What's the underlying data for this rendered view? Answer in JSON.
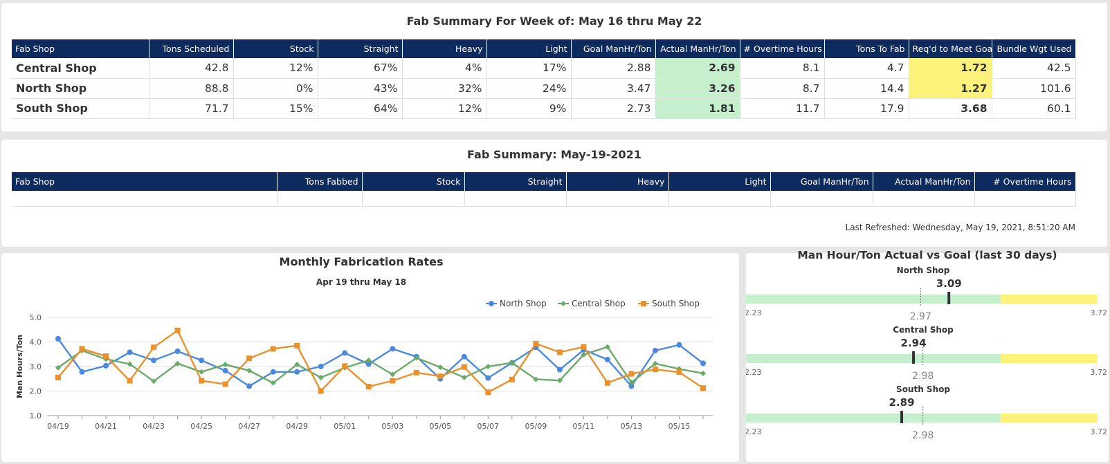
{
  "week_summary": {
    "title": "Fab Summary For Week of: May 16 thru May 22",
    "columns": [
      "Fab Shop",
      "Tons Scheduled",
      "Stock",
      "Straight",
      "Heavy",
      "Light",
      "Goal ManHr/Ton",
      "Actual ManHr/Ton",
      "# Overtime Hours",
      "Tons To Fab",
      "Req'd to Meet Goal",
      "Bundle Wgt Used"
    ],
    "rows": [
      [
        "Central Shop",
        "42.8",
        "12%",
        "67%",
        "4%",
        "17%",
        "2.88",
        "2.69",
        "8.1",
        "4.7",
        "1.72",
        "42.5"
      ],
      [
        "North Shop",
        "88.8",
        "0%",
        "43%",
        "32%",
        "24%",
        "3.47",
        "3.26",
        "8.7",
        "14.4",
        "1.27",
        "101.6"
      ],
      [
        "South Shop",
        "71.7",
        "15%",
        "64%",
        "12%",
        "9%",
        "2.73",
        "1.81",
        "11.7",
        "17.9",
        "3.68",
        "60.1"
      ]
    ],
    "highlight_colors": {
      "green": "#c6efce",
      "yellow": "#fdf27a"
    }
  },
  "day_summary": {
    "title": "Fab Summary: May-19-2021",
    "columns": [
      "Fab Shop",
      "Tons Fabbed",
      "Stock",
      "Straight",
      "Heavy",
      "Light",
      "Goal ManHr/Ton",
      "Actual ManHr/Ton",
      "# Overtime Hours"
    ],
    "last_refreshed": "Last Refreshed: Wednesday, May 19, 2021, 8:51:20 AM"
  },
  "colors": {
    "header_bg": "#0d2b5e",
    "north": "#4a89dc",
    "central": "#6aab6a",
    "south": "#e8912d",
    "gauge_green": "#c6efce",
    "gauge_yellow": "#fdf27a"
  },
  "chart_data": {
    "type": "line",
    "title": "Monthly Fabrication Rates",
    "subtitle": "Apr 19 thru May 18",
    "ylabel": "Man Hours/Ton",
    "xlabel": "",
    "ylim": [
      1.0,
      5.0
    ],
    "yticks": [
      "1.0",
      "2.0",
      "3.0",
      "4.0",
      "5.0"
    ],
    "grid": true,
    "legend_position": "top-right",
    "x": [
      "04/19",
      "04/20",
      "04/21",
      "04/22",
      "04/23",
      "04/24",
      "04/25",
      "04/26",
      "04/27",
      "04/28",
      "04/29",
      "04/30",
      "05/01",
      "05/02",
      "05/03",
      "05/04",
      "05/05",
      "05/06",
      "05/07",
      "05/08",
      "05/09",
      "05/10",
      "05/11",
      "05/12",
      "05/13",
      "05/14",
      "05/15",
      "05/16"
    ],
    "xtick_labels": [
      "04/19",
      "04/21",
      "04/23",
      "04/25",
      "04/27",
      "04/29",
      "05/01",
      "05/03",
      "05/05",
      "05/07",
      "05/09",
      "05/11",
      "05/13",
      "05/15"
    ],
    "series": [
      {
        "name": "North Shop",
        "marker": "circle",
        "values": [
          4.13,
          2.78,
          3.03,
          3.58,
          3.25,
          3.62,
          3.25,
          2.83,
          2.2,
          2.78,
          2.78,
          3.0,
          3.55,
          3.1,
          3.72,
          3.4,
          2.5,
          3.4,
          2.53,
          3.15,
          3.78,
          2.87,
          3.68,
          3.28,
          2.2,
          3.65,
          3.88,
          3.13
        ]
      },
      {
        "name": "Central Shop",
        "marker": "diamond",
        "values": [
          2.95,
          3.65,
          3.3,
          3.1,
          2.4,
          3.12,
          2.78,
          3.08,
          2.83,
          2.33,
          3.08,
          2.55,
          2.95,
          3.25,
          2.68,
          3.35,
          2.97,
          2.55,
          3.0,
          3.15,
          2.48,
          2.43,
          3.48,
          3.8,
          2.35,
          3.12,
          2.9,
          2.72
        ]
      },
      {
        "name": "South Shop",
        "marker": "square",
        "values": [
          2.55,
          3.72,
          3.42,
          2.42,
          3.78,
          4.47,
          2.42,
          2.28,
          3.33,
          3.72,
          3.85,
          2.0,
          3.02,
          2.18,
          2.42,
          2.75,
          2.6,
          2.98,
          1.95,
          2.47,
          3.93,
          3.58,
          3.8,
          2.33,
          2.7,
          2.88,
          2.77,
          2.12
        ]
      }
    ]
  },
  "gauge_panel": {
    "title": "Man Hour/Ton Actual vs Goal (last 30 days)",
    "gauges": [
      {
        "name": "North Shop",
        "actual": 3.09,
        "actual_label": "3.09",
        "goal": 2.97,
        "goal_label": "2.97",
        "min": 2.23,
        "max": 3.72,
        "min_label": "2.23",
        "max_label": "3.72",
        "yellow_from": 3.31
      },
      {
        "name": "Central Shop",
        "actual": 2.94,
        "actual_label": "2.94",
        "goal": 2.98,
        "goal_label": "2.98",
        "min": 2.23,
        "max": 3.72,
        "min_label": "2.23",
        "max_label": "3.72",
        "yellow_from": 3.31
      },
      {
        "name": "South Shop",
        "actual": 2.89,
        "actual_label": "2.89",
        "goal": 2.98,
        "goal_label": "2.98",
        "min": 2.23,
        "max": 3.72,
        "min_label": "2.23",
        "max_label": "3.72",
        "yellow_from": 3.31
      }
    ]
  }
}
